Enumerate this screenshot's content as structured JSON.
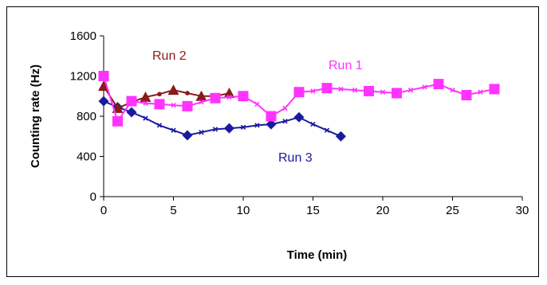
{
  "chart_data": {
    "type": "line",
    "xlabel": "Time (min)",
    "ylabel": "Counting rate  (Hz)",
    "xlim": [
      0,
      30
    ],
    "ylim": [
      0,
      1600
    ],
    "xticks": [
      0,
      5,
      10,
      15,
      20,
      25,
      30
    ],
    "yticks": [
      0,
      400,
      800,
      1200,
      1600
    ],
    "xtick_labels": [
      "0",
      "5",
      "10",
      "15",
      "20",
      "25",
      "30"
    ],
    "ytick_labels": [
      "0",
      "400",
      "800",
      "1200",
      "1600"
    ],
    "grid": false,
    "legend": "none (series labelled inline)",
    "series": [
      {
        "name": "Run 1",
        "color": "#ff33ff",
        "marker": "square",
        "points": [
          [
            0,
            1200
          ],
          [
            1,
            750
          ],
          [
            2,
            950
          ],
          [
            4,
            920
          ],
          [
            6,
            900
          ],
          [
            8,
            980
          ],
          [
            10,
            1000
          ],
          [
            12,
            800
          ],
          [
            14,
            1040
          ],
          [
            16,
            1080
          ],
          [
            19,
            1050
          ],
          [
            21,
            1030
          ],
          [
            24,
            1120
          ],
          [
            26,
            1010
          ],
          [
            28,
            1070
          ]
        ],
        "minor_points": [
          [
            3,
            930
          ],
          [
            5,
            910
          ],
          [
            7,
            940
          ],
          [
            9,
            990
          ],
          [
            11,
            920
          ],
          [
            13,
            880
          ],
          [
            15,
            1050
          ],
          [
            17,
            1070
          ],
          [
            18,
            1060
          ],
          [
            20,
            1040
          ],
          [
            22,
            1060
          ],
          [
            23,
            1090
          ],
          [
            25,
            1060
          ],
          [
            27,
            1040
          ]
        ]
      },
      {
        "name": "Run 2",
        "color": "#8b1a1a",
        "marker": "triangle",
        "points": [
          [
            0,
            1100
          ],
          [
            1,
            880
          ],
          [
            3,
            990
          ],
          [
            5,
            1060
          ],
          [
            7,
            1000
          ],
          [
            9,
            1030
          ]
        ],
        "minor_points": [
          [
            2,
            940
          ],
          [
            4,
            1020
          ],
          [
            6,
            1030
          ],
          [
            8,
            1000
          ]
        ]
      },
      {
        "name": "Run 3",
        "color": "#1a1aa0",
        "marker": "diamond",
        "points": [
          [
            0,
            950
          ],
          [
            1,
            890
          ],
          [
            2,
            840
          ],
          [
            6,
            610
          ],
          [
            9,
            680
          ],
          [
            12,
            720
          ],
          [
            14,
            790
          ],
          [
            17,
            600
          ]
        ],
        "minor_points": [
          [
            3,
            780
          ],
          [
            4,
            710
          ],
          [
            5,
            660
          ],
          [
            7,
            640
          ],
          [
            8,
            670
          ],
          [
            10,
            690
          ],
          [
            11,
            710
          ],
          [
            13,
            750
          ],
          [
            15,
            720
          ],
          [
            16,
            660
          ]
        ]
      }
    ]
  }
}
